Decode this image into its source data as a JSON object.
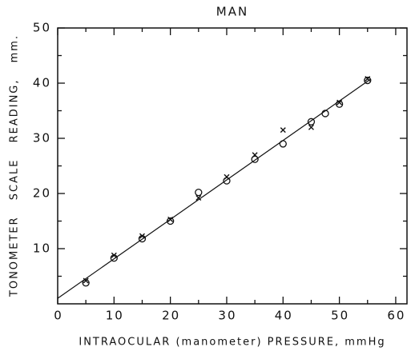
{
  "chart_data": {
    "type": "scatter",
    "title": "MAN",
    "x_label": "INTRAOCULAR (manometer) PRESSURE, mmHg",
    "y_label": "TONOMETER SCALE READING, mm.",
    "xlim": [
      0,
      62
    ],
    "ylim": [
      0,
      50
    ],
    "xticks": [
      0,
      10,
      20,
      30,
      40,
      50,
      60
    ],
    "yticks": [
      10,
      20,
      30,
      40,
      50
    ],
    "minor_xticks": [
      5,
      15,
      25,
      35,
      45,
      55
    ],
    "minor_yticks": [
      5,
      15,
      25,
      35,
      45
    ],
    "color": "#111111",
    "series": [
      {
        "marker": "o",
        "x": [
          5,
          10,
          15,
          20,
          25,
          30,
          35,
          40,
          45,
          47.5,
          50,
          55
        ],
        "values": [
          3.8,
          8.3,
          11.8,
          15.0,
          20.2,
          22.3,
          26.2,
          29.0,
          33.0,
          34.5,
          36.2,
          40.5
        ]
      },
      {
        "marker": "x",
        "x": [
          5,
          10,
          15,
          20,
          25,
          30,
          35,
          40,
          45,
          50,
          55
        ],
        "values": [
          4.2,
          8.8,
          12.3,
          15.3,
          19.2,
          23.0,
          27.0,
          31.5,
          32.0,
          36.5,
          40.8
        ]
      },
      {
        "marker": "line",
        "x": [
          0,
          55.5
        ],
        "values": [
          1.0,
          40.7
        ]
      }
    ]
  }
}
